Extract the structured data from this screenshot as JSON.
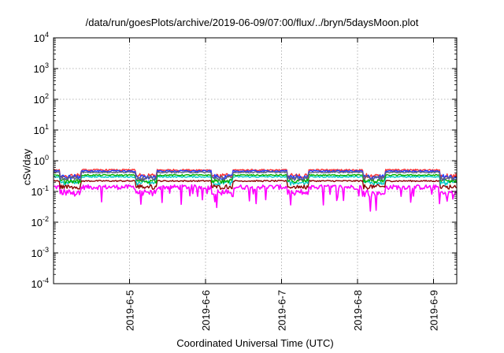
{
  "chart_data": {
    "type": "line",
    "title": "/data/run/goesPlots/archive/2019-06-09/07:00/flux/../bryn/5daysMoon.plot",
    "xlabel": "Coordinated Universal Time (UTC)",
    "ylabel": "cSv/day",
    "y_scale": "log",
    "ylim_exp": [
      -4,
      4
    ],
    "x_range_days": [
      "2019-06-04 00:00",
      "2019-06-09 07:20"
    ],
    "grid": true,
    "legend": "none",
    "x_ticks": [
      "2019-6-5",
      "2019-6-6",
      "2019-6-7",
      "2019-6-8",
      "2019-6-9"
    ],
    "y_ticks": [
      {
        "base": "10",
        "exp": "-4"
      },
      {
        "base": "10",
        "exp": "-3"
      },
      {
        "base": "10",
        "exp": "-2"
      },
      {
        "base": "10",
        "exp": "-1"
      },
      {
        "base": "10",
        "exp": "0"
      },
      {
        "base": "10",
        "exp": "1"
      },
      {
        "base": "10",
        "exp": "2"
      },
      {
        "base": "10",
        "exp": "3"
      },
      {
        "base": "10",
        "exp": "4"
      }
    ],
    "series": [
      {
        "color": "#ff00ff",
        "base": 0.14,
        "noise": 0.35,
        "dips": true
      },
      {
        "color": "#8b0000",
        "base": 0.22,
        "noise": 0.1,
        "dips": false
      },
      {
        "color": "#00c8c8",
        "base": 0.3,
        "noise": 0.1,
        "dips": false
      },
      {
        "color": "#00b000",
        "base": 0.34,
        "noise": 0.1,
        "dips": false
      },
      {
        "color": "#ff3030",
        "base": 0.5,
        "noise": 0.12,
        "dips": false
      },
      {
        "color": "#2040ff",
        "base": 0.46,
        "noise": 0.12,
        "dips": false
      },
      {
        "color": "#606080",
        "base": 0.42,
        "noise": 0.1,
        "dips": false
      }
    ],
    "orbit_period_hours": 24,
    "orbit_low_fraction": 0.28
  }
}
